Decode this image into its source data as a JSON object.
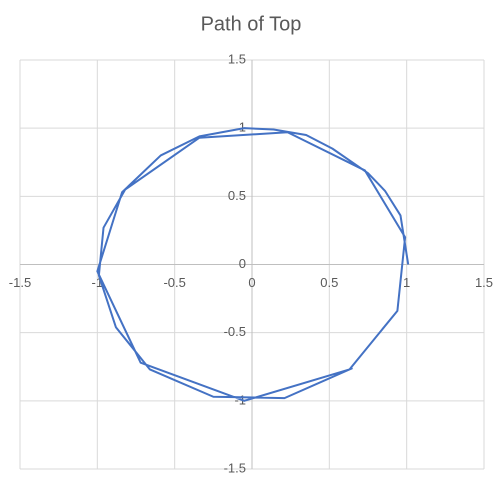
{
  "chart_data": {
    "type": "scatter",
    "title": "Path of Top",
    "x": [
      1.01,
      0.96,
      0.86,
      0.75,
      0.52,
      0.35,
      0.14,
      -0.05,
      -0.34,
      -0.59,
      -0.84,
      -1.0,
      -0.72,
      -0.05,
      0.63,
      0.94,
      0.99,
      0.73,
      0.23,
      -0.34,
      -0.82,
      -0.96,
      -0.99,
      -0.88,
      -0.66,
      -0.25,
      0.21,
      0.65
    ],
    "values": [
      0.0,
      0.36,
      0.54,
      0.67,
      0.85,
      0.95,
      0.99,
      1.0,
      0.94,
      0.8,
      0.53,
      -0.05,
      -0.72,
      -1.0,
      -0.77,
      -0.34,
      0.2,
      0.69,
      0.97,
      0.93,
      0.55,
      0.27,
      -0.08,
      -0.46,
      -0.77,
      -0.97,
      -0.98,
      -0.76
    ],
    "color": "#4472c4",
    "lines": true,
    "markers": false,
    "xlim": [
      -1.5,
      1.5
    ],
    "xticks": [
      -1.5,
      -1,
      -0.5,
      0,
      0.5,
      1,
      1.5
    ],
    "ylim": [
      -1.5,
      1.5
    ],
    "yticks": [
      -1.5,
      -1,
      -0.5,
      0,
      0.5,
      1,
      1.5
    ],
    "grid": true
  }
}
